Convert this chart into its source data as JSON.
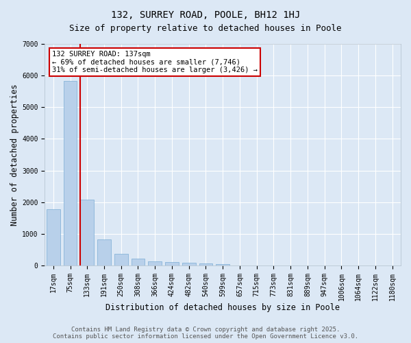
{
  "title": "132, SURREY ROAD, POOLE, BH12 1HJ",
  "subtitle": "Size of property relative to detached houses in Poole",
  "xlabel": "Distribution of detached houses by size in Poole",
  "ylabel": "Number of detached properties",
  "categories": [
    "17sqm",
    "75sqm",
    "133sqm",
    "191sqm",
    "250sqm",
    "308sqm",
    "366sqm",
    "424sqm",
    "482sqm",
    "540sqm",
    "599sqm",
    "657sqm",
    "715sqm",
    "773sqm",
    "831sqm",
    "889sqm",
    "947sqm",
    "1006sqm",
    "1064sqm",
    "1122sqm",
    "1180sqm"
  ],
  "values": [
    1780,
    5820,
    2090,
    820,
    370,
    210,
    120,
    100,
    80,
    55,
    40,
    0,
    0,
    0,
    0,
    0,
    0,
    0,
    0,
    0,
    0
  ],
  "bar_color": "#b8d0ea",
  "bar_edge_color": "#7aadd4",
  "highlight_bar_index": 2,
  "highlight_line_color": "#cc0000",
  "annotation_line1": "132 SURREY ROAD: 137sqm",
  "annotation_line2": "← 69% of detached houses are smaller (7,746)",
  "annotation_line3": "31% of semi-detached houses are larger (3,426) →",
  "annotation_box_facecolor": "#ffffff",
  "annotation_box_edgecolor": "#cc0000",
  "ylim": [
    0,
    7000
  ],
  "yticks": [
    0,
    1000,
    2000,
    3000,
    4000,
    5000,
    6000,
    7000
  ],
  "background_color": "#dce8f5",
  "footer_text": "Contains HM Land Registry data © Crown copyright and database right 2025.\nContains public sector information licensed under the Open Government Licence v3.0.",
  "title_fontsize": 10,
  "subtitle_fontsize": 9,
  "axis_label_fontsize": 8.5,
  "tick_fontsize": 7,
  "annotation_fontsize": 7.5,
  "footer_fontsize": 6.5
}
